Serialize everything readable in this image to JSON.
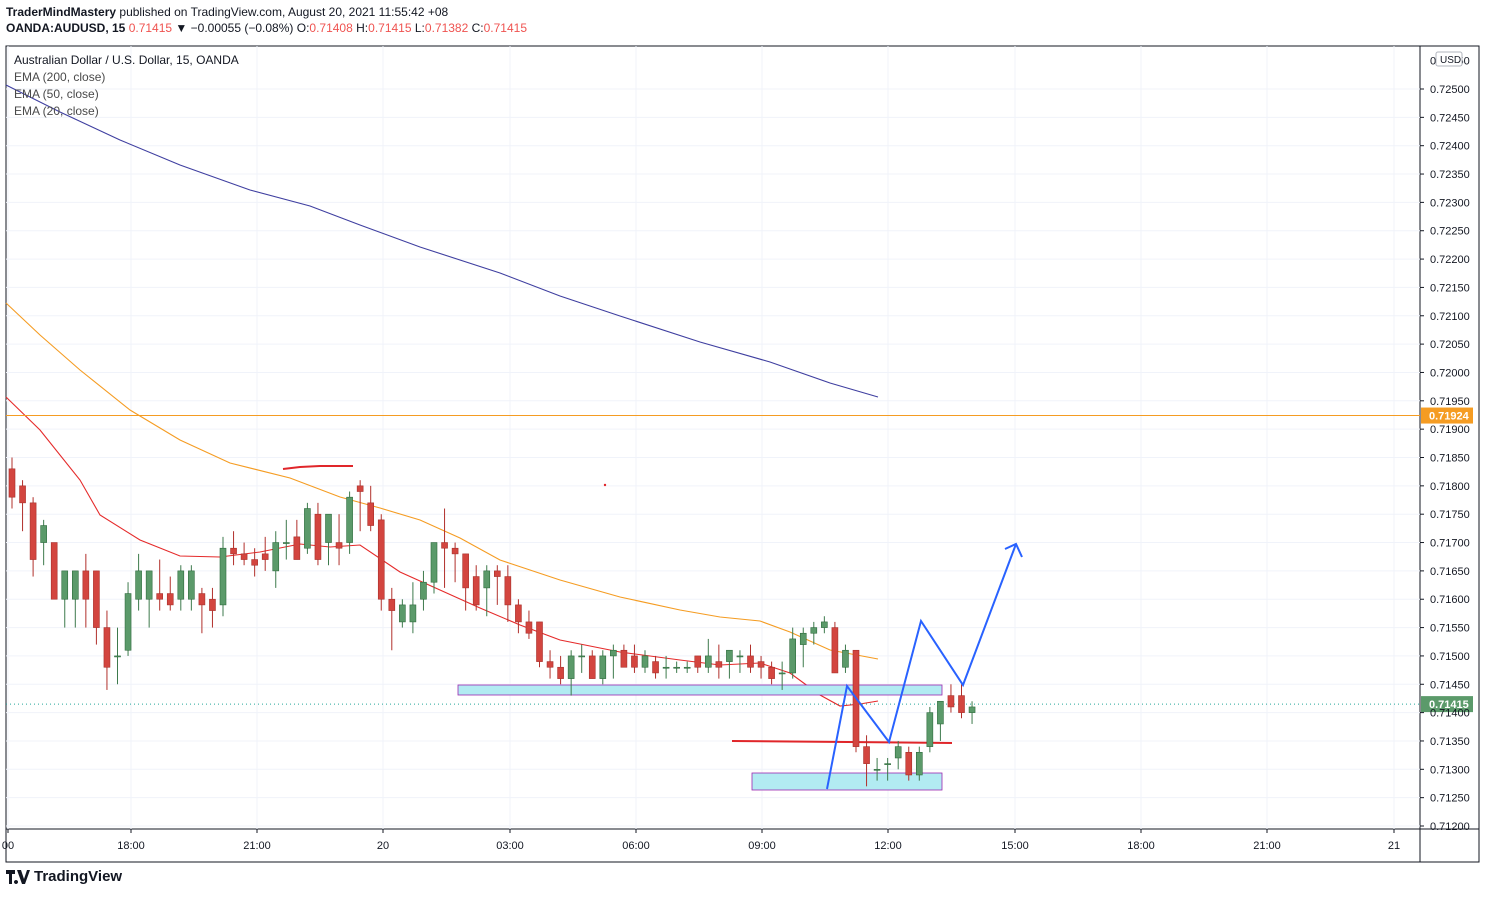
{
  "header": {
    "publisher": "TraderMindMastery",
    "published_text": "published on TradingView.com, August 20, 2021 11:55:42 +08",
    "symbol": "OANDA:AUDUSD, 15",
    "last": "0.71415",
    "change": "▼ −0.00055 (−0.08%)",
    "o_label": "O:",
    "o_value": "0.71408",
    "h_label": "H:",
    "h_value": "0.71415",
    "l_label": "L:",
    "l_value": "0.71382",
    "c_label": "C:",
    "c_value": "0.71415"
  },
  "legend": {
    "title": "Australian Dollar / U.S. Dollar, 15, OANDA",
    "ema200": "EMA (200, close)",
    "ema50": "EMA (50, close)",
    "ema20": "EMA (20, close)"
  },
  "footer": {
    "brand": "TradingView"
  },
  "colors": {
    "up": "#26a69a",
    "upFill": "#5b9a6a",
    "down": "#ef5350",
    "downFill": "#d3453f",
    "ema200": "#3f3fa0",
    "ema50": "#f59c22",
    "ema20": "#e52a2a",
    "hline": "#f59c22",
    "projection": "#2962ff",
    "zoneFill": "#b2ebf2",
    "zoneBorder": "#9c27b0"
  },
  "chart_data": {
    "type": "candlestick",
    "currency": "USD",
    "ylim": [
      0.712,
      0.7254
    ],
    "y_ticks": [
      "0.72500",
      "0.72450",
      "0.72400",
      "0.72350",
      "0.72300",
      "0.72250",
      "0.72200",
      "0.72150",
      "0.72100",
      "0.72050",
      "0.72000",
      "0.71950",
      "0.71900",
      "0.71850",
      "0.71800",
      "0.71750",
      "0.71700",
      "0.71650",
      "0.71600",
      "0.71550",
      "0.71500",
      "0.71450",
      "0.71400",
      "0.71350",
      "0.71300",
      "0.71250",
      "0.71200"
    ],
    "y_top_partial": "0.72550",
    "x_ticks": [
      "00",
      "18:00",
      "21:00",
      "20",
      "03:00",
      "06:00",
      "09:00",
      "12:00",
      "15:00",
      "18:00",
      "21:00",
      "21"
    ],
    "price_labels": {
      "hline": "0.71924",
      "last": "0.71415"
    },
    "hline_value": 0.71924,
    "last_value": 0.71415,
    "candles": [
      [
        0.7183,
        0.7185,
        0.7176,
        0.7178
      ],
      [
        0.718,
        0.7181,
        0.7172,
        0.7177
      ],
      [
        0.7177,
        0.7178,
        0.7164,
        0.7167
      ],
      [
        0.717,
        0.7174,
        0.7166,
        0.7173
      ],
      [
        0.717,
        0.717,
        0.716,
        0.716
      ],
      [
        0.716,
        0.7165,
        0.7155,
        0.7165
      ],
      [
        0.716,
        0.7165,
        0.7155,
        0.7165
      ],
      [
        0.7165,
        0.7168,
        0.7155,
        0.716
      ],
      [
        0.7165,
        0.7165,
        0.7152,
        0.7155
      ],
      [
        0.7155,
        0.7158,
        0.7144,
        0.7148
      ],
      [
        0.715,
        0.7155,
        0.7145,
        0.715
      ],
      [
        0.7151,
        0.7163,
        0.715,
        0.7161
      ],
      [
        0.716,
        0.7168,
        0.7158,
        0.7165
      ],
      [
        0.716,
        0.7165,
        0.7155,
        0.7165
      ],
      [
        0.7161,
        0.7167,
        0.7158,
        0.716
      ],
      [
        0.7161,
        0.7164,
        0.7158,
        0.7159
      ],
      [
        0.716,
        0.7166,
        0.7158,
        0.7165
      ],
      [
        0.716,
        0.7166,
        0.7158,
        0.7165
      ],
      [
        0.7161,
        0.7162,
        0.7154,
        0.7159
      ],
      [
        0.716,
        0.7162,
        0.7155,
        0.7158
      ],
      [
        0.7159,
        0.7171,
        0.7157,
        0.7169
      ],
      [
        0.7169,
        0.7172,
        0.7166,
        0.7168
      ],
      [
        0.7168,
        0.717,
        0.7166,
        0.7167
      ],
      [
        0.7167,
        0.7169,
        0.7164,
        0.7166
      ],
      [
        0.7168,
        0.7171,
        0.7165,
        0.7167
      ],
      [
        0.7165,
        0.7172,
        0.7162,
        0.717
      ],
      [
        0.717,
        0.7174,
        0.7167,
        0.717
      ],
      [
        0.7171,
        0.7174,
        0.7167,
        0.7167
      ],
      [
        0.7169,
        0.7177,
        0.7168,
        0.7176
      ],
      [
        0.7175,
        0.7177,
        0.7166,
        0.7167
      ],
      [
        0.717,
        0.7175,
        0.7166,
        0.7175
      ],
      [
        0.717,
        0.7175,
        0.7166,
        0.7169
      ],
      [
        0.717,
        0.7179,
        0.7168,
        0.7178
      ],
      [
        0.718,
        0.7181,
        0.7172,
        0.7179
      ],
      [
        0.7177,
        0.718,
        0.7172,
        0.7173
      ],
      [
        0.7174,
        0.7175,
        0.7158,
        0.716
      ],
      [
        0.716,
        0.7162,
        0.7151,
        0.7158
      ],
      [
        0.7156,
        0.716,
        0.7155,
        0.7159
      ],
      [
        0.7156,
        0.7163,
        0.7154,
        0.7159
      ],
      [
        0.716,
        0.7165,
        0.7158,
        0.7163
      ],
      [
        0.7163,
        0.717,
        0.7161,
        0.717
      ],
      [
        0.717,
        0.7176,
        0.7162,
        0.7169
      ],
      [
        0.7169,
        0.717,
        0.7163,
        0.7168
      ],
      [
        0.7168,
        0.7168,
        0.7158,
        0.7162
      ],
      [
        0.7164,
        0.7166,
        0.7158,
        0.7159
      ],
      [
        0.7162,
        0.7166,
        0.7157,
        0.7165
      ],
      [
        0.7165,
        0.7166,
        0.7159,
        0.7164
      ],
      [
        0.7164,
        0.7166,
        0.7156,
        0.7159
      ],
      [
        0.7159,
        0.716,
        0.7154,
        0.7156
      ],
      [
        0.7156,
        0.7158,
        0.7153,
        0.7154
      ],
      [
        0.7156,
        0.7156,
        0.7148,
        0.7149
      ],
      [
        0.7149,
        0.7151,
        0.7146,
        0.7148
      ],
      [
        0.7148,
        0.715,
        0.7145,
        0.7146
      ],
      [
        0.7146,
        0.7151,
        0.7143,
        0.715
      ],
      [
        0.715,
        0.7152,
        0.7147,
        0.715
      ],
      [
        0.715,
        0.7151,
        0.7146,
        0.7146
      ],
      [
        0.7146,
        0.7151,
        0.7145,
        0.715
      ],
      [
        0.715,
        0.7152,
        0.7146,
        0.7151
      ],
      [
        0.7151,
        0.7152,
        0.7148,
        0.7148
      ],
      [
        0.715,
        0.7152,
        0.7147,
        0.7148
      ],
      [
        0.7148,
        0.7151,
        0.7147,
        0.715
      ],
      [
        0.7149,
        0.715,
        0.7146,
        0.7147
      ],
      [
        0.7148,
        0.715,
        0.7146,
        0.7148
      ],
      [
        0.7148,
        0.7149,
        0.7147,
        0.7148
      ],
      [
        0.7148,
        0.7149,
        0.7147,
        0.7148
      ],
      [
        0.715,
        0.715,
        0.7147,
        0.7148
      ],
      [
        0.7148,
        0.7153,
        0.7147,
        0.715
      ],
      [
        0.7149,
        0.7152,
        0.7146,
        0.7148
      ],
      [
        0.7149,
        0.7151,
        0.7146,
        0.7151
      ],
      [
        0.715,
        0.7151,
        0.7147,
        0.715
      ],
      [
        0.715,
        0.7152,
        0.7147,
        0.7148
      ],
      [
        0.7149,
        0.715,
        0.7146,
        0.7148
      ],
      [
        0.7148,
        0.7149,
        0.7145,
        0.7146
      ],
      [
        0.7147,
        0.7149,
        0.7144,
        0.7147
      ],
      [
        0.7147,
        0.7155,
        0.7146,
        0.7153
      ],
      [
        0.7152,
        0.7155,
        0.7148,
        0.7154
      ],
      [
        0.7154,
        0.7156,
        0.7152,
        0.7155
      ],
      [
        0.7155,
        0.7157,
        0.7154,
        0.7156
      ],
      [
        0.7155,
        0.7156,
        0.7147,
        0.7147
      ],
      [
        0.7148,
        0.7152,
        0.7147,
        0.7151
      ],
      [
        0.7151,
        0.7151,
        0.7133,
        0.7134
      ],
      [
        0.7134,
        0.7136,
        0.7127,
        0.7131
      ],
      [
        0.713,
        0.7132,
        0.7128,
        0.713
      ],
      [
        0.7131,
        0.7132,
        0.7128,
        0.7131
      ],
      [
        0.7132,
        0.7135,
        0.713,
        0.7134
      ],
      [
        0.7133,
        0.7134,
        0.7128,
        0.7129
      ],
      [
        0.7129,
        0.7134,
        0.7128,
        0.7133
      ],
      [
        0.7134,
        0.7141,
        0.7133,
        0.714
      ],
      [
        0.7138,
        0.7142,
        0.7135,
        0.7142
      ],
      [
        0.7143,
        0.7145,
        0.714,
        0.7141
      ],
      [
        0.7143,
        0.7145,
        0.7139,
        0.714
      ],
      [
        0.714,
        0.7142,
        0.7138,
        0.7141
      ]
    ]
  }
}
